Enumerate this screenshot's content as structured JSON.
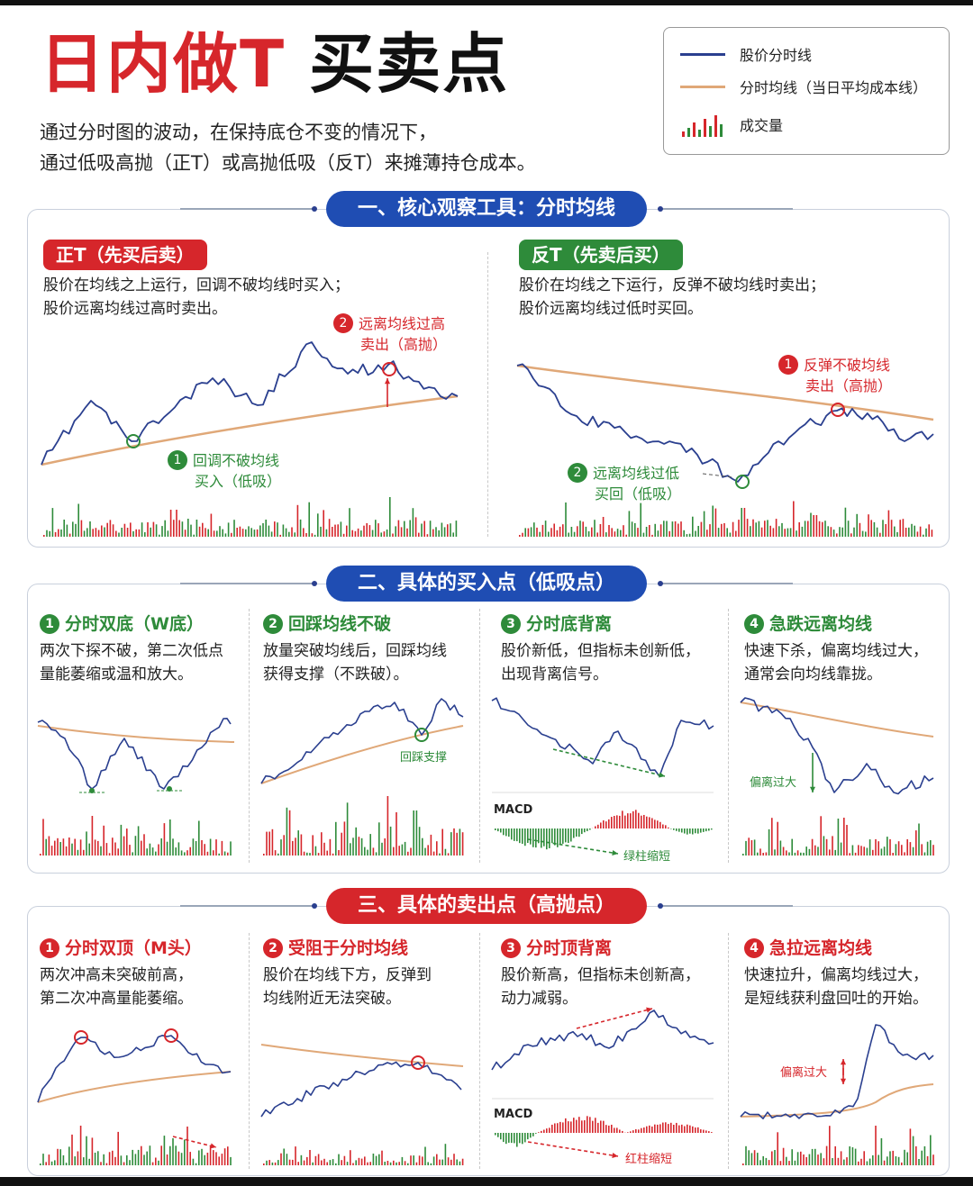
{
  "title": {
    "part1": "日内做T",
    "part2": "买卖点"
  },
  "intro": [
    "通过分时图的波动，在保持底仓不变的情况下，",
    "通过低吸高抛（正T）或高抛低吸（反T）来摊薄持仓成本。"
  ],
  "legend": {
    "price_line": "股价分时线",
    "avg_line": "分时均线（当日平均成本线）",
    "volume": "成交量"
  },
  "colors": {
    "red": "#d6262b",
    "green": "#2e8b3a",
    "blue": "#1f4db3",
    "price": "#2a3f8f",
    "avg": "#e0a878"
  },
  "section1": {
    "title": "一、核心观察工具：分时均线",
    "left": {
      "tag": "正T（先买后卖）",
      "desc": [
        "股价在均线之上运行，回调不破均线时买入；",
        "股价远离均线过高时卖出。"
      ],
      "ann2_num": "2",
      "ann2": [
        "远离均线过高",
        "卖出（高抛）"
      ],
      "ann1_num": "1",
      "ann1": [
        "回调不破均线",
        "买入（低吸）"
      ]
    },
    "right": {
      "tag": "反T（先卖后买）",
      "desc": [
        "股价在均线之下运行，反弹不破均线时卖出；",
        "股价远离均线过低时买回。"
      ],
      "ann1_num": "1",
      "ann1": [
        "反弹不破均线",
        "卖出（高抛）"
      ],
      "ann2_num": "2",
      "ann2": [
        "远离均线过低",
        "买回（低吸）"
      ]
    }
  },
  "section2": {
    "title": "二、具体的买入点（低吸点）",
    "cards": [
      {
        "num": "1",
        "title": "分时双底（W底）",
        "desc": [
          "两次下探不破，第二次低点",
          "量能萎缩或温和放大。"
        ]
      },
      {
        "num": "2",
        "title": "回踩均线不破",
        "desc": [
          "放量突破均线后，回踩均线",
          "获得支撑（不跌破）。"
        ],
        "note": "回踩支撑"
      },
      {
        "num": "3",
        "title": "分时底背离",
        "desc": [
          "股价新低，但指标未创新低，",
          "出现背离信号。"
        ],
        "macd": "MACD",
        "note": "绿柱缩短"
      },
      {
        "num": "4",
        "title": "急跌远离均线",
        "desc": [
          "快速下杀，偏离均线过大，",
          "通常会向均线靠拢。"
        ],
        "note": "偏离过大"
      }
    ]
  },
  "section3": {
    "title": "三、具体的卖出点（高抛点）",
    "cards": [
      {
        "num": "1",
        "title": "分时双顶（M头）",
        "desc": [
          "两次冲高未突破前高，",
          "第二次冲高量能萎缩。"
        ]
      },
      {
        "num": "2",
        "title": "受阻于分时均线",
        "desc": [
          "股价在均线下方，反弹到",
          "均线附近无法突破。"
        ]
      },
      {
        "num": "3",
        "title": "分时顶背离",
        "desc": [
          "股价新高，但指标未创新高，",
          "动力减弱。"
        ],
        "macd": "MACD",
        "note": "红柱缩短"
      },
      {
        "num": "4",
        "title": "急拉远离均线",
        "desc": [
          "快速拉升，偏离均线过大，",
          "是短线获利盘回吐的开始。"
        ],
        "note": "偏离过大"
      }
    ]
  }
}
